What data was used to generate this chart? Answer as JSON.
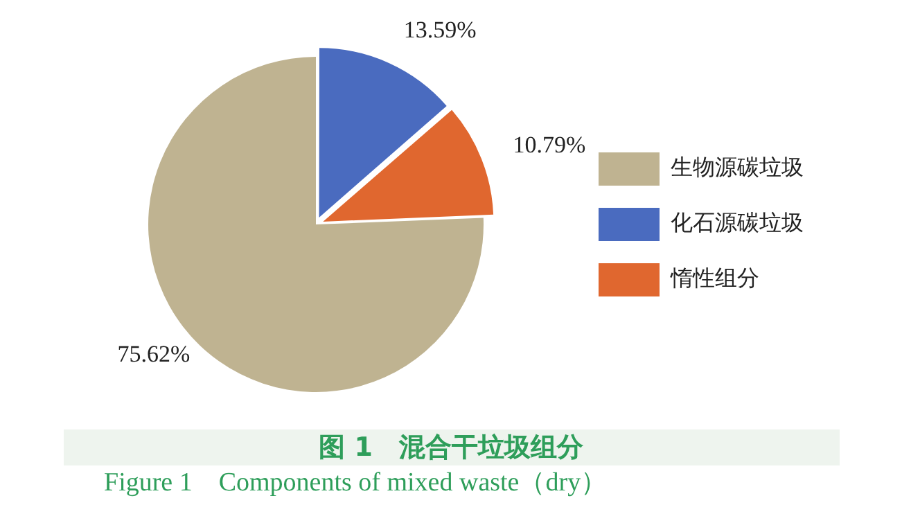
{
  "chart_data": {
    "type": "pie",
    "title": "图 1　混合干垃圾组分",
    "subtitle": "Figure 1　Components of mixed waste（dry）",
    "categories": [
      "生物源碳垃圾",
      "化石源碳垃圾",
      "惰性组分"
    ],
    "values": [
      75.62,
      13.59,
      10.79
    ],
    "colors": [
      "#bfb391",
      "#4a6bbf",
      "#e0672f"
    ],
    "value_labels": [
      "75.62%",
      "13.59%",
      "10.79%"
    ],
    "legend": "right"
  }
}
